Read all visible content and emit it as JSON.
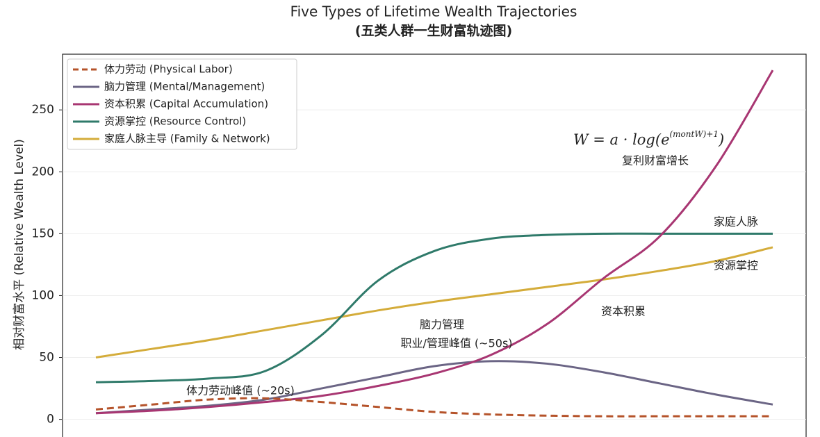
{
  "chart_data": {
    "type": "line",
    "title": "Five Types of Lifetime Wealth Trajectories",
    "subtitle": "(五类人群一生财富轨迹图)",
    "ylabel": "相对财富水平 (Relative Wealth Level)",
    "categories": [
      null,
      null,
      null,
      null,
      null,
      null,
      null,
      null,
      null,
      null,
      null,
      null,
      null
    ],
    "series": [
      {
        "name": "体力劳动 (Physical Labor)",
        "color": "#b5532a",
        "dashed": true,
        "values": [
          8,
          12,
          16,
          17,
          14,
          10,
          6,
          4,
          3,
          2.5,
          2.5,
          2.5,
          2.5
        ]
      },
      {
        "name": "脑力管理 (Mental/Management)",
        "color": "#6b6585",
        "values": [
          5,
          8,
          11,
          16,
          25,
          34,
          43,
          47,
          45,
          38,
          29,
          20,
          12
        ]
      },
      {
        "name": "资本积累 (Capital Accumulation)",
        "color": "#a83672",
        "values": [
          5,
          7,
          10,
          14,
          19,
          27,
          37,
          52,
          77,
          114,
          148,
          205,
          282
        ]
      },
      {
        "name": "资源掌控 (Resource Control)",
        "color": "#2f7a6a",
        "values": [
          30,
          31,
          33,
          39,
          68,
          112,
          136,
          146,
          149,
          150,
          150,
          150,
          150
        ]
      },
      {
        "name": "家庭人脉主导 (Family & Network)",
        "color": "#d4ac3a",
        "values": [
          50,
          57,
          64,
          72,
          80,
          88,
          95,
          101,
          107,
          113,
          120,
          128,
          139
        ]
      }
    ],
    "formula": {
      "main": "W = a · log(e",
      "sup": "(montW)+1",
      "tail": ")"
    },
    "annotations": [
      "复利财富增长",
      "家庭人脉",
      "资源掌控",
      "资本积累",
      "脑力管理",
      "职业/管理峰值 (~50s)",
      "体力劳动峰值 (~20s)"
    ],
    "ylim": [
      -12,
      295
    ],
    "yticks": [
      0,
      50,
      100,
      150,
      200,
      250
    ],
    "grid": true,
    "legend": "upper-left"
  }
}
